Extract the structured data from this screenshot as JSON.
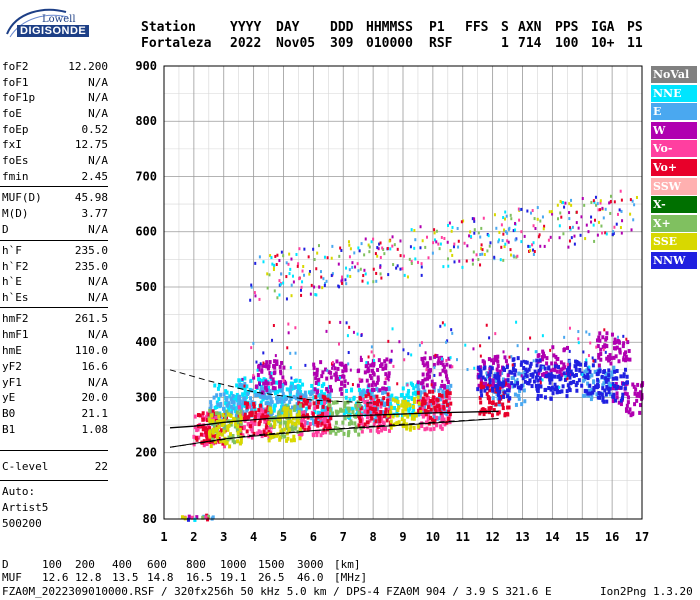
{
  "logo": {
    "top": "Lowell",
    "bottom": "DIGISONDE"
  },
  "header": {
    "row1": [
      "Station",
      "YYYY",
      "DAY",
      "DDD",
      "HHMMSS",
      "P1",
      "FFS",
      "S",
      "AXN",
      "PPS",
      "IGA",
      "PS"
    ],
    "row2": [
      "Fortaleza",
      "2022",
      "Nov05",
      "309",
      "010000",
      "RSF",
      "1",
      "714",
      "100",
      "10+",
      "11"
    ]
  },
  "params": [
    {
      "k": "foF2",
      "v": "12.200"
    },
    {
      "k": "foF1",
      "v": "N/A"
    },
    {
      "k": "foF1p",
      "v": "N/A"
    },
    {
      "k": "foE",
      "v": "N/A"
    },
    {
      "k": "foEp",
      "v": "0.52"
    },
    {
      "k": "fxI",
      "v": "12.75"
    },
    {
      "k": "foEs",
      "v": "N/A"
    },
    {
      "k": "fmin",
      "v": "2.45"
    },
    {
      "k": "MUF(D)",
      "v": "45.98"
    },
    {
      "k": "M(D)",
      "v": "3.77"
    },
    {
      "k": "D",
      "v": "N/A"
    },
    {
      "k": "h`F",
      "v": "235.0"
    },
    {
      "k": "h`F2",
      "v": "235.0"
    },
    {
      "k": "h`E",
      "v": "N/A"
    },
    {
      "k": "h`Es",
      "v": "N/A"
    },
    {
      "k": "hmF2",
      "v": "261.5"
    },
    {
      "k": "hmF1",
      "v": "N/A"
    },
    {
      "k": "hmE",
      "v": "110.0"
    },
    {
      "k": "yF2",
      "v": "16.6"
    },
    {
      "k": "yF1",
      "v": "N/A"
    },
    {
      "k": "yE",
      "v": "20.0"
    },
    {
      "k": "B0",
      "v": "21.1"
    },
    {
      "k": "B1",
      "v": "1.08"
    },
    {
      "k": "C-level",
      "v": "22"
    }
  ],
  "auto": {
    "label": "Auto:",
    "name": "Artist5",
    "version": "500200"
  },
  "legend": [
    {
      "name": "NoVal",
      "color": "#808080"
    },
    {
      "name": "NNE",
      "color": "#00e5ff"
    },
    {
      "name": "E",
      "color": "#4aa8f0"
    },
    {
      "name": "W",
      "color": "#b000b0"
    },
    {
      "name": "Vo-",
      "color": "#ff3fa0"
    },
    {
      "name": "Vo+",
      "color": "#e8002a"
    },
    {
      "name": "SSW",
      "color": "#ffb0b0"
    },
    {
      "name": "X-",
      "color": "#007000"
    },
    {
      "name": "X+",
      "color": "#80c060"
    },
    {
      "name": "SSE",
      "color": "#d8d800"
    },
    {
      "name": "NNW",
      "color": "#2020e0"
    }
  ],
  "footer": {
    "d_label": "D",
    "d_values": [
      "100",
      "200",
      "400",
      "600",
      "800",
      "1000",
      "1500",
      "3000"
    ],
    "d_unit": "[km]",
    "muf_label": "MUF",
    "muf_values": [
      "12.6",
      "12.8",
      "13.5",
      "14.8",
      "16.5",
      "19.1",
      "26.5",
      "46.0"
    ],
    "muf_unit": "[MHz]",
    "file_line": "FZA0M_2022309010000.RSF / 320fx256h 50 kHz 5.0 km / DPS-4 FZA0M 904 / 3.9 S 321.6 E",
    "version": "Ion2Png 1.3.20"
  },
  "chart_data": {
    "type": "scatter",
    "title": "",
    "xlabel": "",
    "ylabel": "",
    "xlim": [
      1,
      17
    ],
    "ylim": [
      80,
      900
    ],
    "x_ticks": [
      1,
      2,
      3,
      4,
      5,
      6,
      7,
      8,
      9,
      10,
      11,
      12,
      13,
      14,
      15,
      16,
      17
    ],
    "y_ticks": [
      80,
      200,
      300,
      400,
      500,
      600,
      700,
      800,
      900
    ],
    "grid": true,
    "legend_position": "right",
    "series": [
      {
        "name": "NNE",
        "points": [
          [
            3.2,
            300
          ],
          [
            4.0,
            310
          ],
          [
            5.0,
            305
          ],
          [
            6.0,
            300
          ],
          [
            7.5,
            295
          ],
          [
            9.0,
            300
          ]
        ]
      },
      {
        "name": "E",
        "points": [
          [
            3.0,
            280
          ],
          [
            4.0,
            300
          ],
          [
            5.0,
            295
          ],
          [
            6.0,
            285
          ],
          [
            8.0,
            290
          ],
          [
            10.0,
            295
          ],
          [
            12.5,
            320
          ],
          [
            15.5,
            330
          ]
        ]
      },
      {
        "name": "W",
        "points": [
          [
            4.5,
            340
          ],
          [
            6.5,
            340
          ],
          [
            8.0,
            345
          ],
          [
            10.0,
            350
          ],
          [
            12.0,
            350
          ],
          [
            14.0,
            365
          ],
          [
            16.0,
            390
          ],
          [
            16.5,
            300
          ]
        ]
      },
      {
        "name": "Vo-",
        "points": [
          [
            2.5,
            245
          ],
          [
            4.0,
            260
          ],
          [
            6.0,
            265
          ],
          [
            8.0,
            270
          ],
          [
            10.0,
            275
          ]
        ]
      },
      {
        "name": "Vo+",
        "points": [
          [
            2.5,
            250
          ],
          [
            4.0,
            265
          ],
          [
            6.0,
            275
          ],
          [
            8.0,
            280
          ],
          [
            10.0,
            285
          ],
          [
            12.0,
            300
          ]
        ]
      },
      {
        "name": "NNW",
        "points": [
          [
            12.0,
            330
          ],
          [
            13.0,
            345
          ],
          [
            14.0,
            330
          ],
          [
            15.0,
            340
          ],
          [
            16.0,
            325
          ]
        ]
      },
      {
        "name": "X+",
        "points": [
          [
            3.0,
            250
          ],
          [
            5.0,
            260
          ],
          [
            7.0,
            265
          ]
        ]
      },
      {
        "name": "SSE",
        "points": [
          [
            3.0,
            245
          ],
          [
            5.0,
            255
          ],
          [
            9.0,
            275
          ]
        ]
      }
    ],
    "multihop": {
      "x_range": [
        3.8,
        16.8
      ],
      "y_range": [
        510,
        690
      ]
    },
    "low_echoes": {
      "x_range": [
        1.5,
        2.6
      ],
      "y_range": [
        82,
        90
      ]
    },
    "profile_curve": [
      [
        1.2,
        245
      ],
      [
        2.0,
        248
      ],
      [
        3.0,
        255
      ],
      [
        4.5,
        262
      ],
      [
        6.0,
        265
      ],
      [
        8.0,
        268
      ],
      [
        10.0,
        272
      ],
      [
        12.2,
        275
      ]
    ],
    "x_trace_curve": [
      [
        1.2,
        210
      ],
      [
        3.0,
        225
      ],
      [
        6.0,
        240
      ],
      [
        9.0,
        250
      ],
      [
        12.2,
        262
      ]
    ],
    "upper_dashed": [
      [
        1.2,
        350
      ],
      [
        2.5,
        330
      ],
      [
        4.0,
        310
      ],
      [
        6.0,
        295
      ],
      [
        8.0,
        290
      ]
    ],
    "lower_dashed": [
      [
        1.2,
        210
      ],
      [
        2.5,
        220
      ],
      [
        4.0,
        232
      ],
      [
        6.0,
        240
      ],
      [
        8.0,
        248
      ],
      [
        10.0,
        255
      ],
      [
        12.2,
        262
      ]
    ]
  }
}
